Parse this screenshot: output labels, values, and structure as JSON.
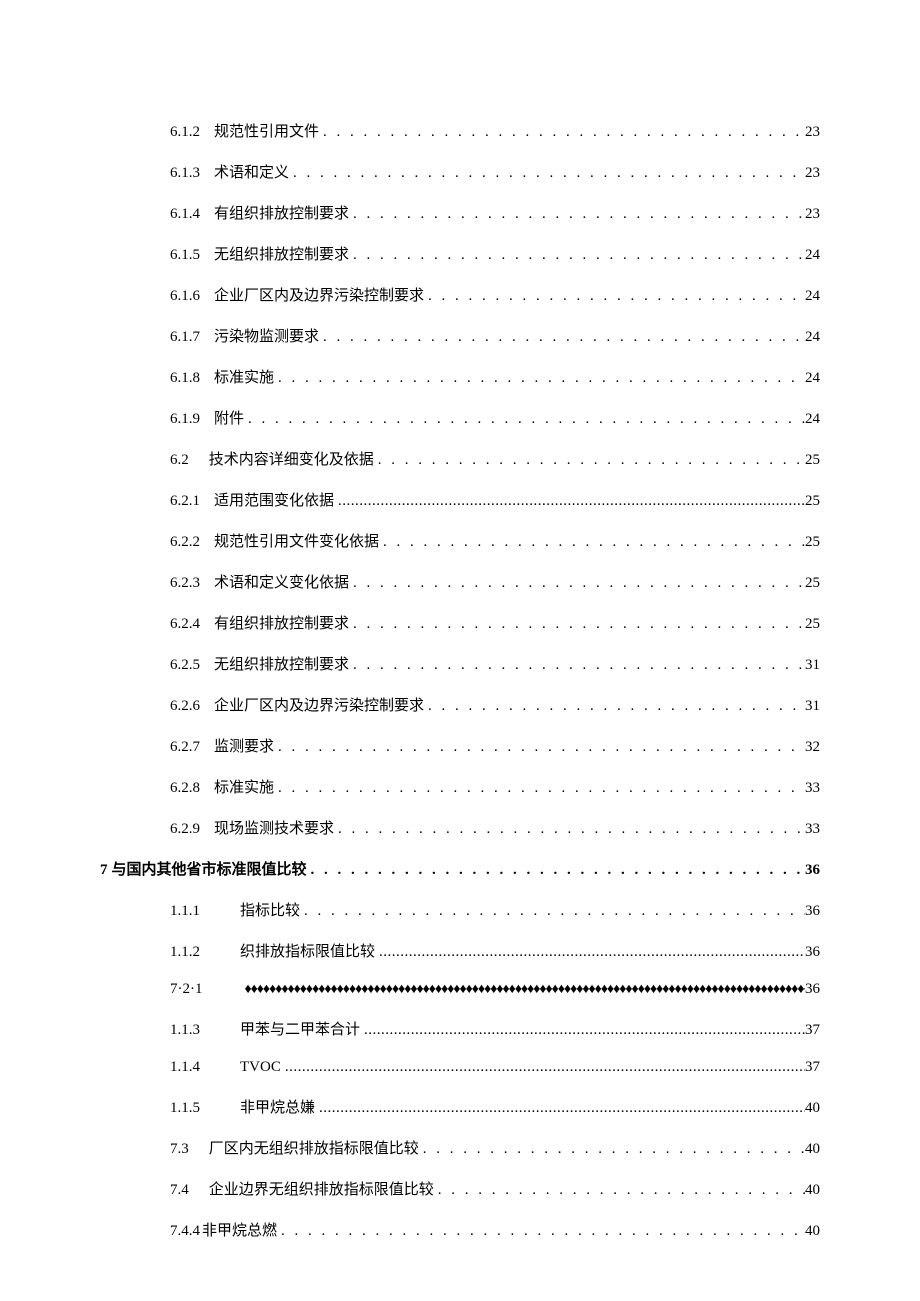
{
  "dot_leader": ". . . . . . . . . . . . . . . . . . . . . . . . . . . . . . . . . . . . . . . . . . . . . . . . . . . . . . . . . . . . . . . . . . . . . . . . . . . . . . . . . . . . . . . . . . . . . . .",
  "dot_leader_tight": "...............................................................................................................................................................................",
  "diamond_leader": "♦♦♦♦♦♦♦♦♦♦♦♦♦♦♦♦♦♦♦♦♦♦♦♦♦♦♦♦♦♦♦♦♦♦♦♦♦♦♦♦♦♦♦♦♦♦♦♦♦♦♦♦♦♦♦♦♦♦♦♦♦♦♦♦♦♦♦♦♦♦♦♦♦♦♦♦♦♦♦♦♦♦♦♦♦♦♦♦♦♦♦♦♦♦♦",
  "toc": [
    {
      "num": "6.1.2",
      "title": "规范性引用文件",
      "page": "23",
      "indent": 2,
      "leader": "dots",
      "num_pad": 14
    },
    {
      "num": "6.1.3",
      "title": "术语和定义",
      "page": "23",
      "indent": 2,
      "leader": "dots",
      "num_pad": 14
    },
    {
      "num": "6.1.4",
      "title": "有组织排放控制要求",
      "page": "23",
      "indent": 2,
      "leader": "dots",
      "num_pad": 14
    },
    {
      "num": "6.1.5",
      "title": "无组织排放控制要求",
      "page": "24",
      "indent": 2,
      "leader": "dots",
      "num_pad": 14
    },
    {
      "num": "6.1.6",
      "title": "企业厂区内及边界污染控制要求",
      "page": "24",
      "indent": 2,
      "leader": "dots",
      "num_pad": 14
    },
    {
      "num": "6.1.7",
      "title": "污染物监测要求",
      "page": "24",
      "indent": 2,
      "leader": "dots",
      "num_pad": 14
    },
    {
      "num": "6.1.8",
      "title": "标准实施",
      "page": "24",
      "indent": 2,
      "leader": "dots",
      "num_pad": 14
    },
    {
      "num": "6.1.9",
      "title": "附件",
      "page": "24",
      "indent": 2,
      "leader": "dots",
      "num_pad": 14
    },
    {
      "num": "6.2",
      "title": "技术内容详细变化及依据",
      "page": "25",
      "indent": 1,
      "leader": "dots",
      "num_pad": 20
    },
    {
      "num": "6.2.1",
      "title": "适用范围变化依据",
      "page": "25",
      "indent": 2,
      "leader": "dots_tight",
      "num_pad": 14
    },
    {
      "num": "6.2.2",
      "title": "规范性引用文件变化依据",
      "page": "25",
      "indent": 2,
      "leader": "dots",
      "num_pad": 14
    },
    {
      "num": "6.2.3",
      "title": "术语和定义变化依据",
      "page": "25",
      "indent": 2,
      "leader": "dots",
      "num_pad": 14
    },
    {
      "num": "6.2.4",
      "title": "有组织排放控制要求",
      "page": "25",
      "indent": 2,
      "leader": "dots",
      "num_pad": 14
    },
    {
      "num": "6.2.5",
      "title": "无组织排放控制要求",
      "page": "31",
      "indent": 2,
      "leader": "dots",
      "num_pad": 14
    },
    {
      "num": "6.2.6",
      "title": "企业厂区内及边界污染控制要求",
      "page": "31",
      "indent": 2,
      "leader": "dots",
      "num_pad": 14
    },
    {
      "num": "6.2.7",
      "title": "监测要求",
      "page": "32",
      "indent": 2,
      "leader": "dots",
      "num_pad": 14
    },
    {
      "num": "6.2.8",
      "title": "标准实施",
      "page": "33",
      "indent": 2,
      "leader": "dots",
      "num_pad": 14
    },
    {
      "num": "6.2.9",
      "title": "现场监测技术要求",
      "page": "33",
      "indent": 2,
      "leader": "dots",
      "num_pad": 14
    },
    {
      "num": "7",
      "title": "与国内其他省市标准限值比较",
      "page": "36",
      "indent": 0,
      "leader": "dots",
      "bold": true,
      "num_pad": 4,
      "nospace": true
    },
    {
      "num": "1.1.1",
      "title": "指标比较",
      "page": "36",
      "indent": 3,
      "leader": "dots",
      "num_pad": 40
    },
    {
      "num": "1.1.2",
      "title": "织排放指标限值比较",
      "page": "36",
      "indent": 3,
      "leader": "dots_tight",
      "num_pad": 40
    },
    {
      "num": "7·2·1",
      "title": "",
      "page": "36",
      "indent": 2,
      "leader": "diamond",
      "num_pad": 40
    },
    {
      "num": "1.1.3",
      "title": "甲苯与二甲苯合计",
      "page": "37",
      "indent": 3,
      "leader": "dots_tight",
      "num_pad": 40
    },
    {
      "num": "1.1.4",
      "title": "TVOC",
      "page": "37",
      "indent": 3,
      "leader": "dots_tight",
      "num_pad": 40
    },
    {
      "num": "1.1.5",
      "title": "非甲烷总嫌",
      "page": "40",
      "indent": 3,
      "leader": "dots_tight",
      "num_pad": 40
    },
    {
      "num": "7.3",
      "title": "厂区内无组织排放指标限值比较",
      "page": "40",
      "indent": 1,
      "leader": "dots",
      "num_pad": 20
    },
    {
      "num": "7.4",
      "title": "企业边界无组织排放指标限值比较",
      "page": "40",
      "indent": 1,
      "leader": "dots",
      "num_pad": 20
    },
    {
      "num": "7.4.4",
      "title": "非甲烷总燃",
      "page": "40",
      "indent": 2,
      "leader": "dots",
      "num_pad": 2,
      "nospace": true
    }
  ]
}
